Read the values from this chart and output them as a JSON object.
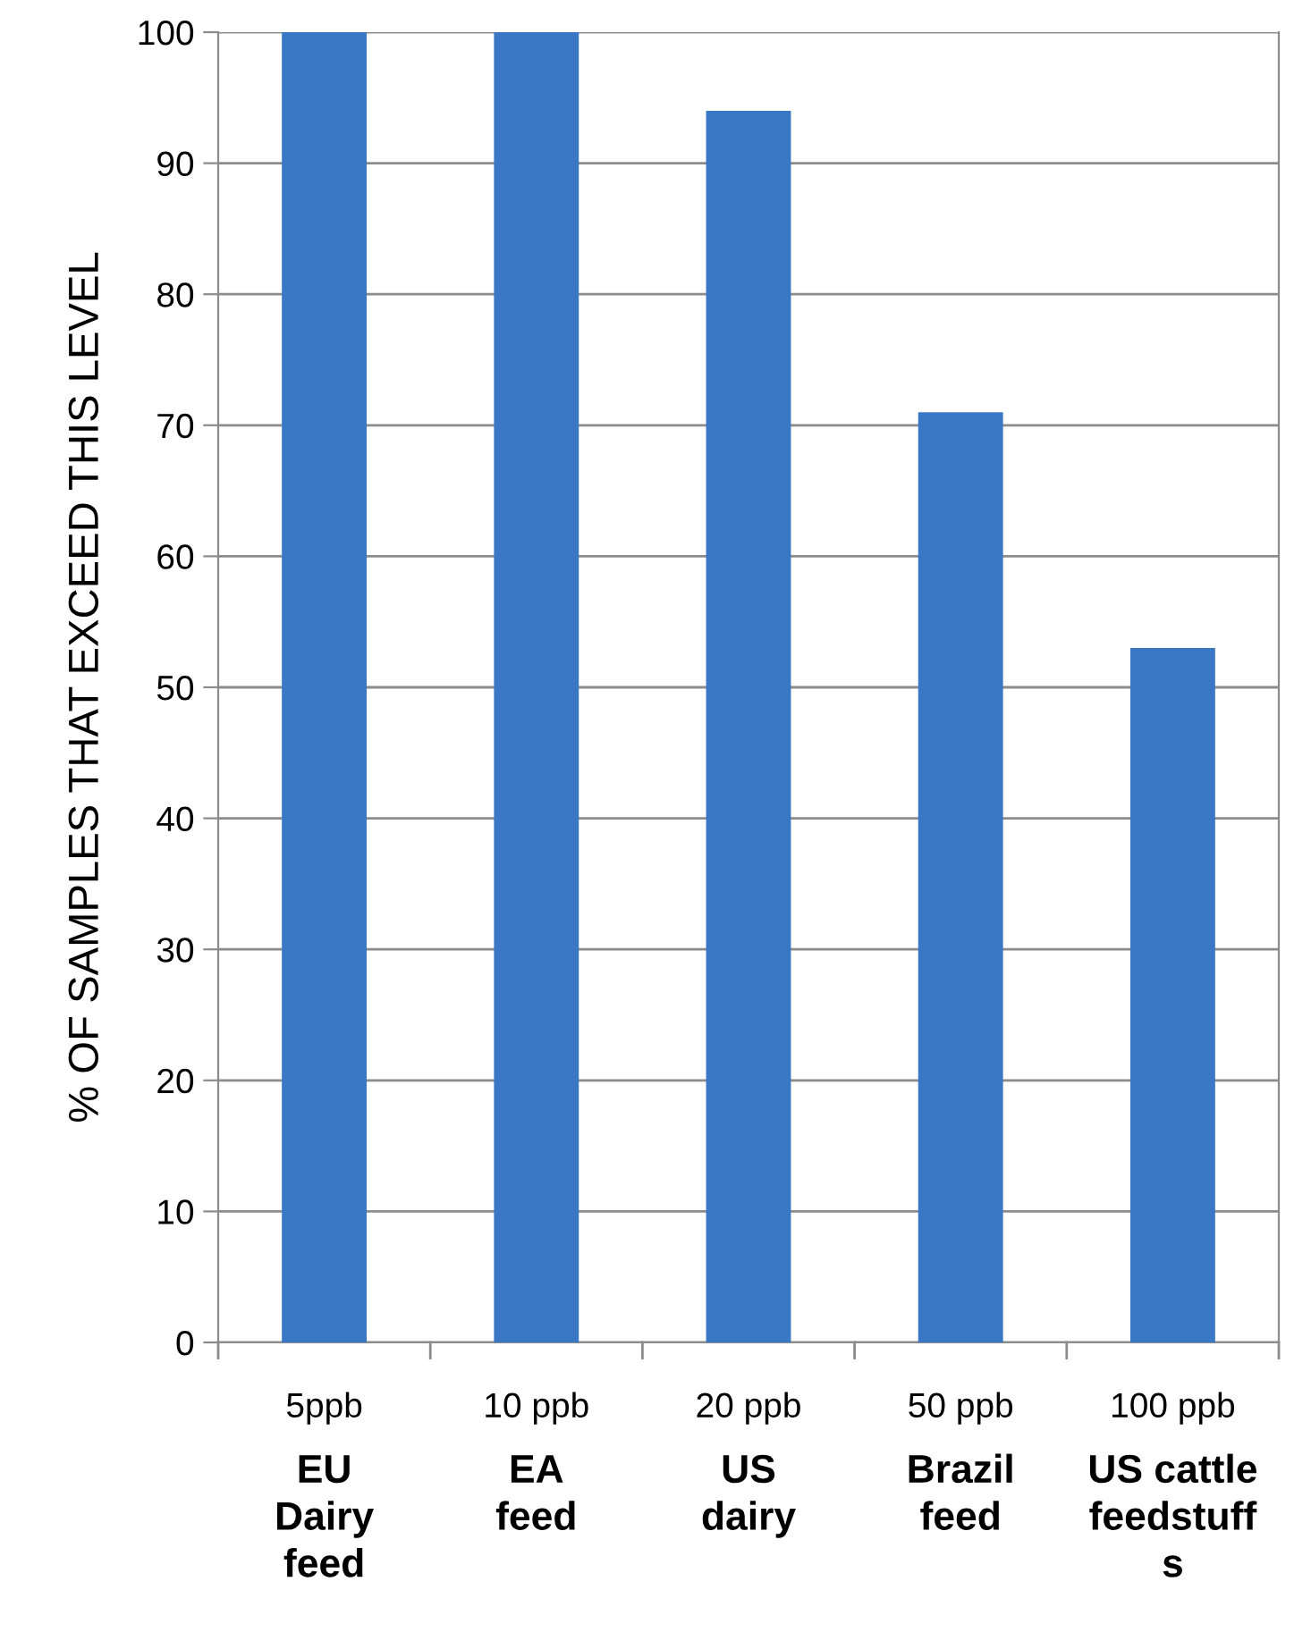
{
  "chart_data": {
    "type": "bar",
    "categories": [
      "5ppb\nEU\nDairy\nfeed",
      "10 ppb\nEA\nfeed",
      "20 ppb\nUS\ndairy",
      "50 ppb\nBrazil\nfeed",
      "100 ppb\nUS cattle\nfeedstuff\ns"
    ],
    "values": [
      100,
      100,
      94,
      71,
      53
    ],
    "color": "#3a77c4",
    "ylabel": "% OF SAMPLES THAT EXCEED THIS LEVEL",
    "ylim": [
      0,
      100
    ],
    "yticks": [
      0,
      10,
      20,
      30,
      40,
      50,
      60,
      70,
      80,
      90,
      100
    ],
    "grid": "y"
  }
}
